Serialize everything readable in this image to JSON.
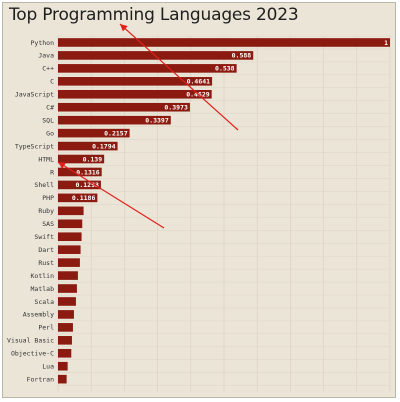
{
  "colors": {
    "bar": "#8b1a10",
    "background": "#ebe5d8",
    "grid": "#d9d1c1",
    "annotation_arrow": "#e0201a"
  },
  "chart_data": {
    "type": "bar",
    "orientation": "horizontal",
    "title": "Top Programming Languages 2023",
    "xlabel": "",
    "ylabel": "",
    "xlim": [
      0,
      1
    ],
    "grid": true,
    "legend": "none",
    "categories": [
      "Python",
      "Java",
      "C++",
      "C",
      "JavaScript",
      "C#",
      "SQL",
      "Go",
      "TypeScript",
      "HTML",
      "R",
      "Shell",
      "PHP",
      "Ruby",
      "SAS",
      "Swift",
      "Dart",
      "Rust",
      "Kotlin",
      "Matlab",
      "Scala",
      "Assembly",
      "Perl",
      "Visual Basic",
      "Objective-C",
      "Lua",
      "Fortran"
    ],
    "values": [
      1,
      0.588,
      0.538,
      0.4641,
      0.4629,
      0.3973,
      0.3397,
      0.2157,
      0.1794,
      0.139,
      0.1316,
      0.1293,
      0.1186,
      0.077,
      0.073,
      0.071,
      0.068,
      0.066,
      0.06,
      0.057,
      0.054,
      0.048,
      0.045,
      0.042,
      0.04,
      0.029,
      0.026
    ],
    "data_labels": [
      "1",
      "0.588",
      "0.538",
      "0.4641",
      "0.4629",
      "0.3973",
      "0.3397",
      "0.2157",
      "0.1794",
      "0.139",
      "0.1316",
      "0.1293",
      "0.1186",
      "",
      "",
      "",
      "",
      "",
      "",
      "",
      "",
      "",
      "",
      "",
      "",
      "",
      ""
    ]
  },
  "annotations": [
    {
      "type": "arrow",
      "from_label": "Python",
      "direction": "up-left to title"
    },
    {
      "type": "arrow",
      "from_label": "HTML",
      "direction": "down-right"
    }
  ]
}
